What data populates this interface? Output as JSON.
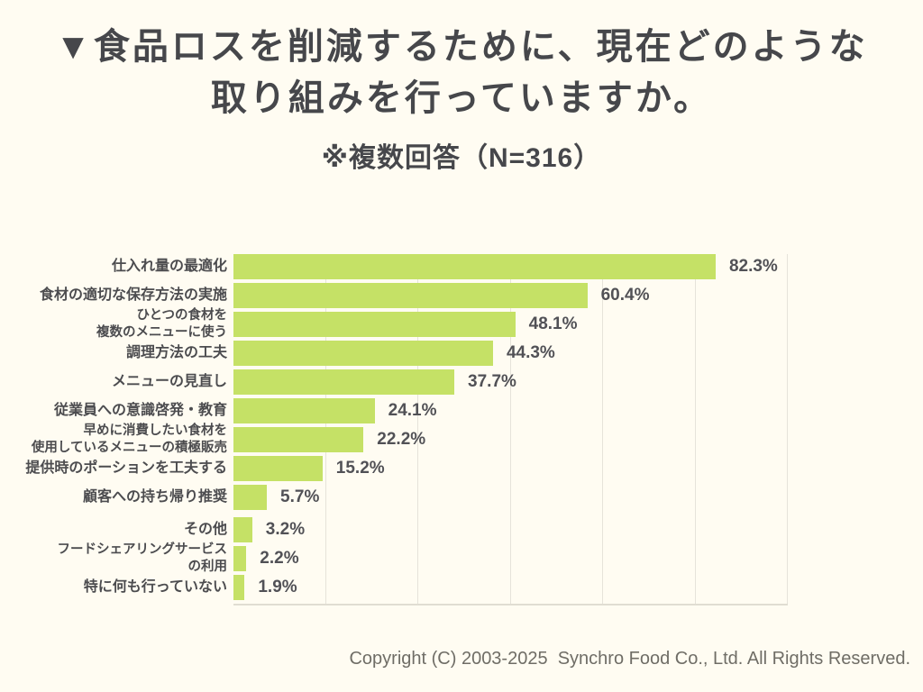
{
  "header": {
    "title_line1": "▼食品ロスを削減するために、現在どのような",
    "title_line2": "取り組みを行っていますか。",
    "subtitle": "※複数回答（N=316）"
  },
  "chart_data": {
    "type": "bar",
    "orientation": "horizontal",
    "unit": "%",
    "sample_size": "N=316",
    "title": "食品ロスを削減するために、現在どのような取り組みを行っていますか。",
    "xlim": [
      0,
      94.6
    ],
    "grid": "6 vertical gridlines, bottom axis line",
    "bar_color": "#c5e166",
    "items": [
      {
        "label_lines": [
          "仕入れ量の最適化"
        ],
        "value": 82.3,
        "value_label": "82.3%"
      },
      {
        "label_lines": [
          "食材の適切な保存方法の実施"
        ],
        "value": 60.4,
        "value_label": "60.4%"
      },
      {
        "label_lines": [
          "ひとつの食材を",
          "複数のメニューに使う"
        ],
        "value": 48.1,
        "value_label": "48.1%"
      },
      {
        "label_lines": [
          "調理方法の工夫"
        ],
        "value": 44.3,
        "value_label": "44.3%"
      },
      {
        "label_lines": [
          "メニューの見直し"
        ],
        "value": 37.7,
        "value_label": "37.7%"
      },
      {
        "label_lines": [
          "従業員への意識啓発・教育"
        ],
        "value": 24.1,
        "value_label": "24.1%"
      },
      {
        "label_lines": [
          "早めに消費したい食材を",
          "使用しているメニューの積極販売"
        ],
        "value": 22.2,
        "value_label": "22.2%"
      },
      {
        "label_lines": [
          "提供時のポーションを工夫する"
        ],
        "value": 15.2,
        "value_label": "15.2%"
      },
      {
        "label_lines": [
          "顧客への持ち帰り推奨"
        ],
        "value": 5.7,
        "value_label": "5.7%"
      },
      {
        "label_lines": [
          "その他"
        ],
        "value": 3.2,
        "value_label": "3.2%"
      },
      {
        "label_lines": [
          "フードシェアリングサービス",
          "の利用"
        ],
        "value": 2.2,
        "value_label": "2.2%"
      },
      {
        "label_lines": [
          "特に何も行っていない"
        ],
        "value": 1.9,
        "value_label": "1.9%"
      }
    ]
  },
  "footer": {
    "copyright": "Copyright (C) 2003-2025  Synchro Food Co., Ltd. All Rights Reserved."
  },
  "colors": {
    "background": "#fffcf2",
    "bar": "#c5e166",
    "title_text": "#46474b",
    "label_text": "#4c4c4f",
    "value_text": "#515156",
    "gridline": "#e6e3da",
    "copyright_text": "#6f6d66"
  }
}
